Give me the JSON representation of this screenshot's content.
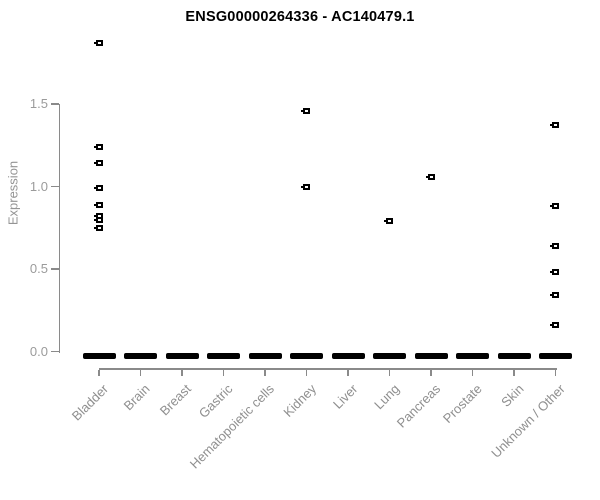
{
  "title": "ENSG00000264336 - AC140479.1",
  "colors": {
    "point": "#000000",
    "zero_bar": "#000000",
    "axis_line": "#8a8a8a",
    "y_tick_label": "#9b9b9b",
    "x_tick_label": "#8f8f8f",
    "title": "#000000",
    "background": "#ffffff"
  },
  "chart_data": {
    "type": "scatter",
    "title": "ENSG00000264336 - AC140479.1",
    "xlabel": "",
    "ylabel": "Expression",
    "ylim": [
      0,
      1.9
    ],
    "yticks": [
      0.0,
      0.5,
      1.0,
      1.5
    ],
    "grid": false,
    "legend": false,
    "categories": [
      "Bladder",
      "Brain",
      "Breast",
      "Gastric",
      "Hematopoietic cells",
      "Kidney",
      "Liver",
      "Lung",
      "Pancreas",
      "Prostate",
      "Skin",
      "Unknown / Other"
    ],
    "series": [
      {
        "category": "Bladder",
        "zero_cluster": true,
        "points": [
          1.87,
          1.24,
          1.14,
          0.99,
          0.89,
          0.82,
          0.8,
          0.75
        ]
      },
      {
        "category": "Brain",
        "zero_cluster": true,
        "points": []
      },
      {
        "category": "Breast",
        "zero_cluster": true,
        "points": []
      },
      {
        "category": "Gastric",
        "zero_cluster": true,
        "points": []
      },
      {
        "category": "Hematopoietic cells",
        "zero_cluster": true,
        "points": []
      },
      {
        "category": "Kidney",
        "zero_cluster": true,
        "points": [
          1.46,
          1.0
        ]
      },
      {
        "category": "Liver",
        "zero_cluster": true,
        "points": []
      },
      {
        "category": "Lung",
        "zero_cluster": true,
        "points": [
          0.79
        ]
      },
      {
        "category": "Pancreas",
        "zero_cluster": true,
        "points": [
          1.06
        ]
      },
      {
        "category": "Prostate",
        "zero_cluster": true,
        "points": []
      },
      {
        "category": "Skin",
        "zero_cluster": true,
        "points": []
      },
      {
        "category": "Unknown / Other",
        "zero_cluster": true,
        "points": [
          1.37,
          0.88,
          0.64,
          0.48,
          0.34,
          0.16
        ]
      }
    ],
    "zero_cluster_value": 0.0
  }
}
